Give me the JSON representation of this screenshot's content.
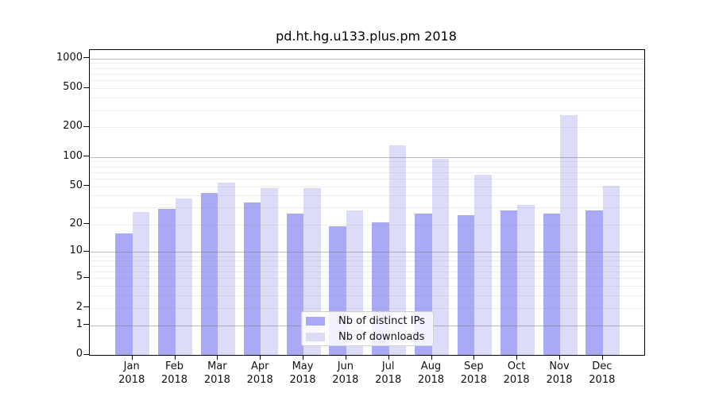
{
  "chart_data": {
    "type": "bar",
    "title": "pd.ht.hg.u133.plus.pm 2018",
    "categories": [
      "Jan",
      "Feb",
      "Mar",
      "Apr",
      "May",
      "Jun",
      "Jul",
      "Aug",
      "Sep",
      "Oct",
      "Nov",
      "Dec"
    ],
    "year_label": "2018",
    "series": [
      {
        "name": "Nb of distinct IPs",
        "color": "#a9a9f5",
        "values": [
          16,
          29,
          43,
          34,
          26,
          19,
          21,
          26,
          25,
          28,
          26,
          28
        ]
      },
      {
        "name": "Nb of downloads",
        "color": "#dcdcf8",
        "values": [
          27,
          37,
          55,
          48,
          48,
          28,
          132,
          95,
          66,
          32,
          265,
          51
        ]
      }
    ],
    "yscale": "log1p",
    "ylim": [
      0,
      1220
    ],
    "y_ticks": [
      {
        "value": 1000,
        "label": "1000"
      },
      {
        "value": 500,
        "label": "500"
      },
      {
        "value": 200,
        "label": "200"
      },
      {
        "value": 100,
        "label": "100"
      },
      {
        "value": 50,
        "label": "50"
      },
      {
        "value": 20,
        "label": "20"
      },
      {
        "value": 10,
        "label": "10"
      },
      {
        "value": 5,
        "label": "5"
      },
      {
        "value": 2,
        "label": "2"
      },
      {
        "value": 1,
        "label": "1"
      },
      {
        "value": 0,
        "label": "0"
      }
    ],
    "grid": {
      "major_values": [
        1,
        10,
        100,
        1000
      ],
      "minor_values": [
        2,
        3,
        4,
        5,
        6,
        7,
        8,
        9,
        20,
        30,
        40,
        50,
        60,
        70,
        80,
        90,
        200,
        300,
        400,
        500,
        600,
        700,
        800,
        900
      ],
      "major_color": "rgba(120,120,120,0.50)",
      "minor_color": "rgba(120,120,120,0.13)"
    },
    "legend_position": "lower center",
    "xlabel": "",
    "ylabel": ""
  }
}
